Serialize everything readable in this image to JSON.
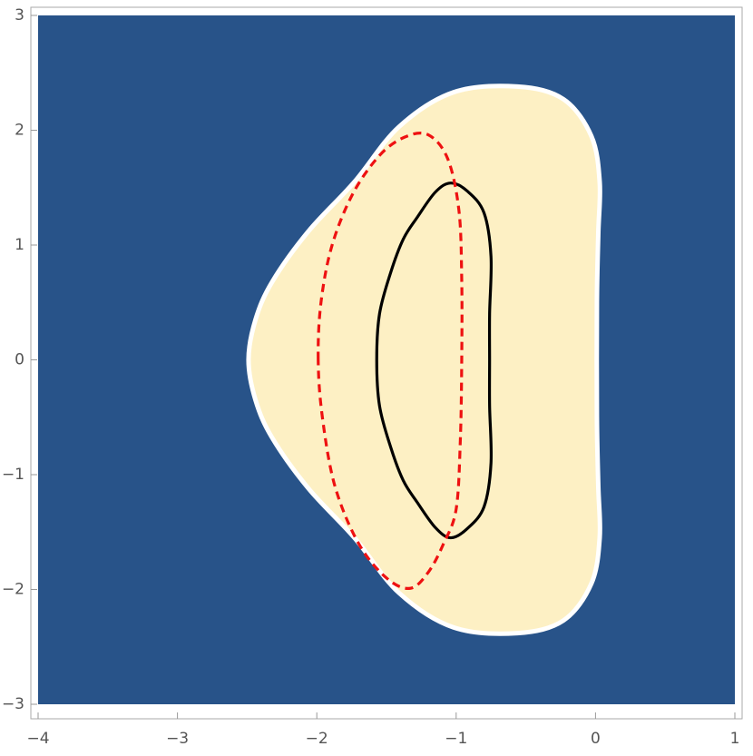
{
  "chart_data": {
    "type": "region",
    "background": "#285389",
    "xlim": [
      -4,
      1
    ],
    "ylim": [
      -3,
      3
    ],
    "xticks": [
      {
        "value": -4,
        "label": "−4"
      },
      {
        "value": -3,
        "label": "−3"
      },
      {
        "value": -2,
        "label": "−2"
      },
      {
        "value": -1,
        "label": "−1"
      },
      0,
      1
    ],
    "yticks": [
      {
        "value": -3,
        "label": "−3"
      },
      {
        "value": -2,
        "label": "−2"
      },
      {
        "value": -1,
        "label": "−1"
      },
      0,
      1,
      2,
      3
    ],
    "series": [
      {
        "color": "#fdf0c4",
        "stroke": "#ffffff",
        "filled": true,
        "x": [
          -2.49,
          -2.44,
          -2.32,
          -2.06,
          -1.73,
          -1.41,
          -1.02,
          -0.56,
          -0.23,
          -0.03,
          0.03,
          0.02,
          0.01,
          0.01,
          0.02,
          0.03,
          -0.03,
          -0.23,
          -0.56,
          -1.02,
          -1.41,
          -1.73,
          -2.06,
          -2.32,
          -2.44
        ],
        "y": [
          0,
          0.35,
          0.68,
          1.12,
          1.55,
          2.03,
          2.33,
          2.38,
          2.27,
          1.95,
          1.55,
          1.1,
          0.5,
          -0.5,
          -1.1,
          -1.55,
          -1.95,
          -2.27,
          -2.38,
          -2.33,
          -2.03,
          -1.55,
          -1.12,
          -0.68,
          -0.35
        ]
      },
      {
        "color": "#000000",
        "x": [
          -1.57,
          -1.55,
          -1.47,
          -1.38,
          -1.28,
          -1.15,
          -1.04,
          -0.92,
          -0.8,
          -0.75,
          -0.76,
          -0.76,
          -0.76,
          -0.75,
          -0.8,
          -0.92,
          -1.04,
          -1.15,
          -1.28,
          -1.38,
          -1.47,
          -1.55
        ],
        "y": [
          0,
          0.4,
          0.76,
          1.05,
          1.24,
          1.46,
          1.54,
          1.47,
          1.28,
          0.9,
          0.4,
          0,
          -0.4,
          -0.9,
          -1.28,
          -1.47,
          -1.55,
          -1.46,
          -1.24,
          -1.05,
          -0.76,
          -0.4
        ]
      },
      {
        "color": "#ee1111",
        "dashed": true,
        "x": [
          -1.99,
          -1.97,
          -1.89,
          -1.74,
          -1.55,
          -1.37,
          -1.2,
          -1.06,
          -0.98,
          -0.96,
          -0.96,
          -0.97,
          -1.0,
          -1.09,
          -1.2,
          -1.33,
          -1.5,
          -1.7,
          -1.87,
          -1.96
        ],
        "y": [
          0,
          0.5,
          1.0,
          1.45,
          1.78,
          1.94,
          1.96,
          1.75,
          1.3,
          0.7,
          0,
          -0.7,
          -1.3,
          -1.6,
          -1.85,
          -1.99,
          -1.9,
          -1.6,
          -1.1,
          -0.5
        ]
      }
    ]
  }
}
